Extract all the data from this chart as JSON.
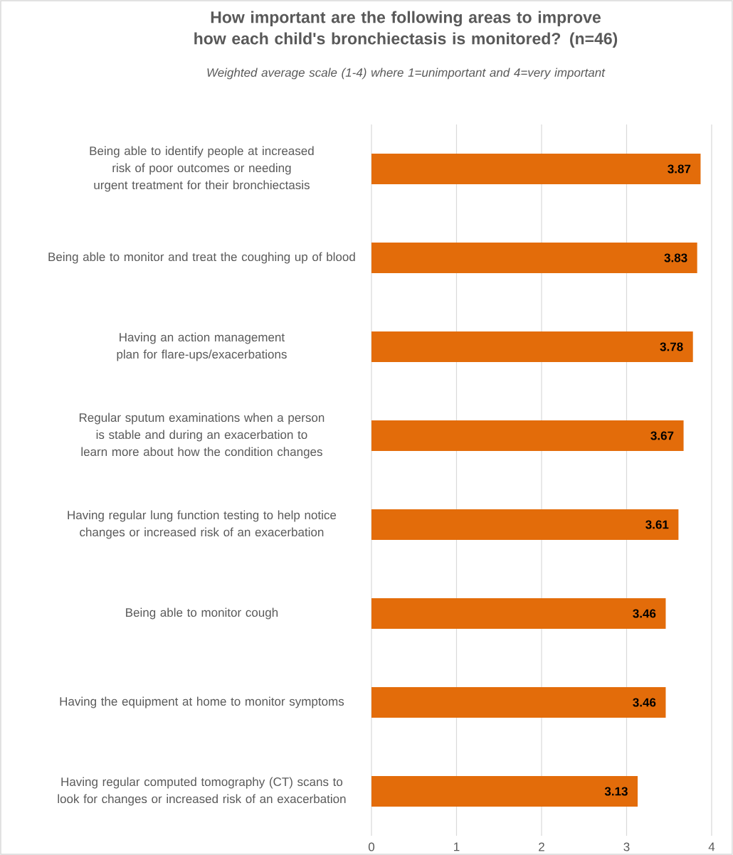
{
  "chart_data": {
    "type": "bar",
    "orientation": "horizontal",
    "title": "How important are the following areas to improve how each child's bronchiectasis is monitored? (n=46)",
    "subtitle": "Weighted average scale (1-4) where 1=unimportant and 4=very important",
    "categories": [
      "Being able to identify people at increased risk of poor outcomes or needing urgent treatment for their bronchiectasis",
      "Being able to monitor and treat the coughing up of blood",
      "Having an action management plan for flare-ups/exacerbations",
      "Regular sputum examinations when a person is stable and during an exacerbation to learn more about how the condition changes",
      "Having regular lung function testing to help notice changes or increased risk of an exacerbation",
      "Being able to monitor cough",
      "Having the equipment at home to monitor symptoms",
      "Having regular computed tomography (CT) scans to look for changes or increased risk of an exacerbation"
    ],
    "values": [
      3.87,
      3.83,
      3.78,
      3.67,
      3.61,
      3.46,
      3.46,
      3.13
    ],
    "color": "#e36c0a",
    "xlim": [
      0,
      4
    ],
    "xticks": [
      0,
      1,
      2,
      3,
      4
    ],
    "grid": "x",
    "data_labels": true
  }
}
